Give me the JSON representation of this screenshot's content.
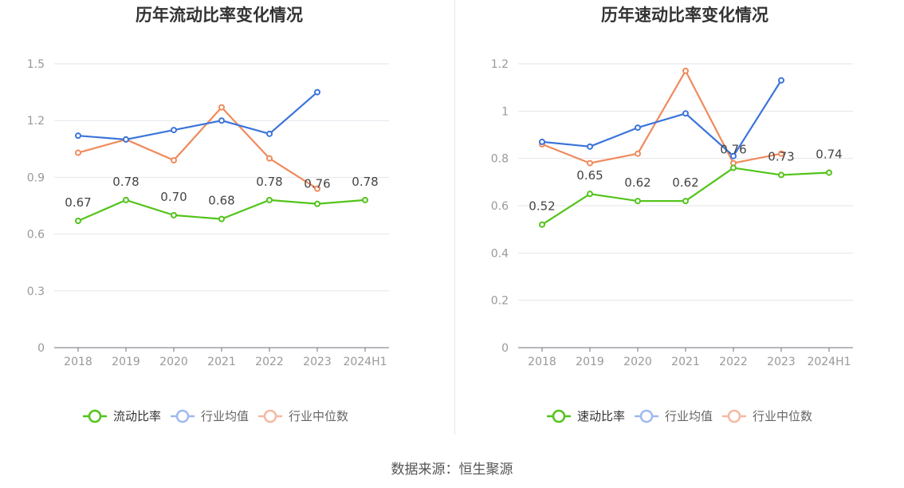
{
  "source_text": "数据来源：恒生聚源",
  "chart_data": [
    {
      "type": "line",
      "title": "历年流动比率变化情况",
      "categories": [
        "2018",
        "2019",
        "2020",
        "2021",
        "2022",
        "2023",
        "2024H1"
      ],
      "ylim": [
        0,
        1.5
      ],
      "yticks": [
        "0",
        "0.3",
        "0.6",
        "0.9",
        "1.2",
        "1.5"
      ],
      "grid": true,
      "legend_position": "bottom",
      "series": [
        {
          "name": "流动比率",
          "color": "#52c41a",
          "values": [
            0.67,
            0.78,
            0.7,
            0.68,
            0.78,
            0.76,
            0.78
          ],
          "labels": [
            "0.67",
            "0.78",
            "0.70",
            "0.68",
            "0.78",
            "0.76",
            "0.78"
          ]
        },
        {
          "name": "行业均值",
          "color": "#3b74db",
          "values": [
            1.12,
            1.1,
            1.15,
            1.2,
            1.13,
            1.35,
            null
          ]
        },
        {
          "name": "行业中位数",
          "color": "#f08a5d",
          "values": [
            1.03,
            1.1,
            0.99,
            1.27,
            1.0,
            0.84,
            null
          ]
        }
      ]
    },
    {
      "type": "line",
      "title": "历年速动比率变化情况",
      "categories": [
        "2018",
        "2019",
        "2020",
        "2021",
        "2022",
        "2023",
        "2024H1"
      ],
      "ylim": [
        0,
        1.2
      ],
      "yticks": [
        "0",
        "0.2",
        "0.4",
        "0.6",
        "0.8",
        "1",
        "1.2"
      ],
      "grid": true,
      "legend_position": "bottom",
      "series": [
        {
          "name": "速动比率",
          "color": "#52c41a",
          "values": [
            0.52,
            0.65,
            0.62,
            0.62,
            0.76,
            0.73,
            0.74
          ],
          "labels": [
            "0.52",
            "0.65",
            "0.62",
            "0.62",
            "0.76",
            "0.73",
            "0.74"
          ]
        },
        {
          "name": "行业均值",
          "color": "#3b74db",
          "values": [
            0.87,
            0.85,
            0.93,
            0.99,
            0.81,
            1.13,
            null
          ]
        },
        {
          "name": "行业中位数",
          "color": "#f08a5d",
          "values": [
            0.86,
            0.78,
            0.82,
            1.17,
            0.78,
            0.82,
            null
          ]
        }
      ]
    }
  ]
}
